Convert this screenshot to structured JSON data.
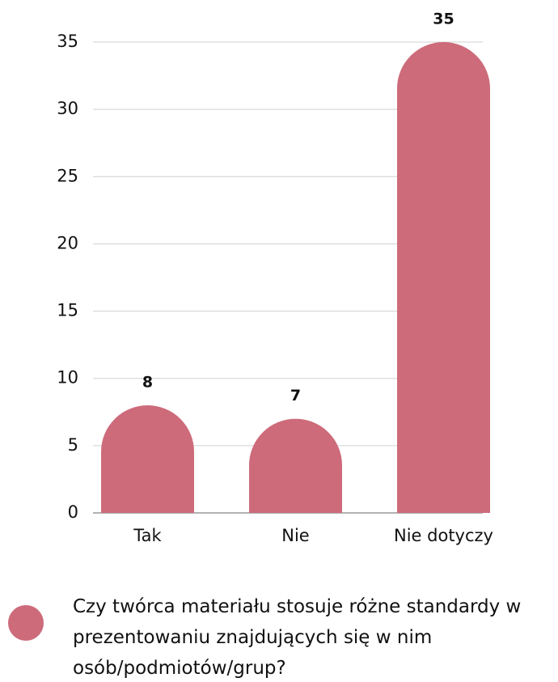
{
  "chart_data": {
    "type": "bar",
    "categories": [
      "Tak",
      "Nie",
      "Nie dotyczy"
    ],
    "series": [
      {
        "name": "Czy twórca materiału stosuje różne standardy w prezentowaniu znajdujących się w nim osób/podmiotów/grup?",
        "color": "#cd6b7a",
        "values": [
          8,
          7,
          35
        ]
      }
    ],
    "ylim": [
      0,
      35
    ],
    "yticks": [
      0,
      5,
      10,
      15,
      20,
      25,
      30,
      35
    ],
    "grid": true
  }
}
